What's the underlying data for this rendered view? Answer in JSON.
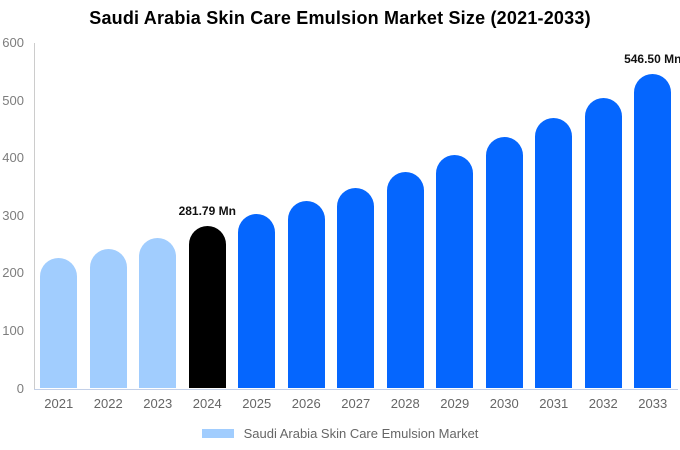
{
  "title": "Saudi Arabia Skin Care Emulsion Market Size (2021-2033)",
  "legend": {
    "label": "Saudi Arabia Skin Care Emulsion Market",
    "swatch_color": "#a1cdfe"
  },
  "colors": {
    "historical_bar": "#a1cdfe",
    "base_year_bar": "#000000",
    "forecast_bar": "#0566fe",
    "axis_line": "#cccccc",
    "baseline": "#c3d0e8",
    "tick_text": "#7d7d7d",
    "label_text": "#111111"
  },
  "chart_data": {
    "type": "bar",
    "title": "Saudi Arabia Skin Care Emulsion Market Size (2021-2033)",
    "xlabel": "",
    "ylabel": "",
    "unit": "Mn",
    "categories": [
      "2021",
      "2022",
      "2023",
      "2024",
      "2025",
      "2026",
      "2027",
      "2028",
      "2029",
      "2030",
      "2031",
      "2032",
      "2033"
    ],
    "values": [
      226,
      243,
      262,
      281.79,
      303,
      326,
      348,
      376,
      405,
      436,
      469,
      505,
      546.5
    ],
    "bar_colors": [
      "#a1cdfe",
      "#a1cdfe",
      "#a1cdfe",
      "#000000",
      "#0566fe",
      "#0566fe",
      "#0566fe",
      "#0566fe",
      "#0566fe",
      "#0566fe",
      "#0566fe",
      "#0566fe",
      "#0566fe"
    ],
    "data_labels": [
      "",
      "",
      "",
      "281.79 Mn",
      "",
      "",
      "",
      "",
      "",
      "",
      "",
      "",
      "546.50 Mn"
    ],
    "ylim": [
      0,
      600
    ],
    "yticks": [
      0,
      100,
      200,
      300,
      400,
      500,
      600
    ],
    "grid": false,
    "legend_position": "bottom",
    "legend_entries": [
      "Saudi Arabia Skin Care Emulsion Market"
    ]
  }
}
